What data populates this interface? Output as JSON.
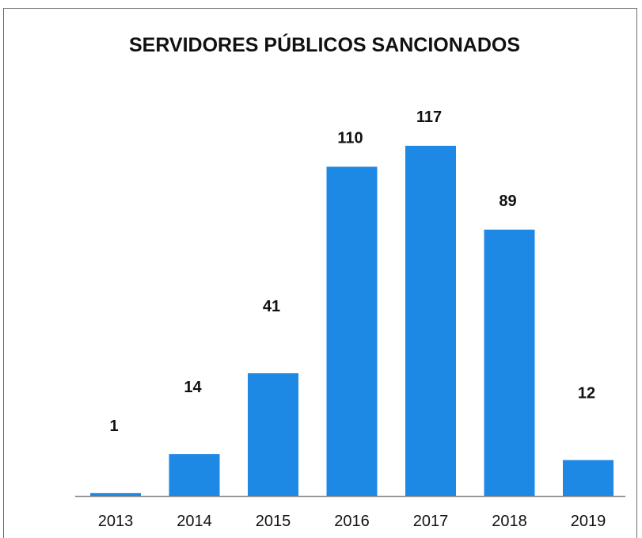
{
  "chart_data": {
    "type": "bar",
    "title": "SERVIDORES PÚBLICOS SANCIONADOS",
    "xlabel": "",
    "ylabel": "",
    "categories": [
      "2013",
      "2014",
      "2015",
      "2016",
      "2017",
      "2018",
      "2019"
    ],
    "values": [
      1,
      14,
      41,
      110,
      117,
      89,
      12
    ],
    "ylim": [
      0,
      117
    ],
    "grid": false,
    "legend": "none",
    "bar_color": "#1e88e5"
  }
}
